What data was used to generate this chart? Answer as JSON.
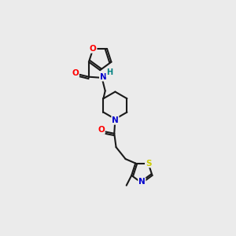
{
  "bg_color": "#ebebeb",
  "bond_color": "#1a1a1a",
  "atom_colors": {
    "O": "#ff0000",
    "N": "#0000cc",
    "S": "#cccc00",
    "H": "#008080",
    "C": "#1a1a1a"
  }
}
